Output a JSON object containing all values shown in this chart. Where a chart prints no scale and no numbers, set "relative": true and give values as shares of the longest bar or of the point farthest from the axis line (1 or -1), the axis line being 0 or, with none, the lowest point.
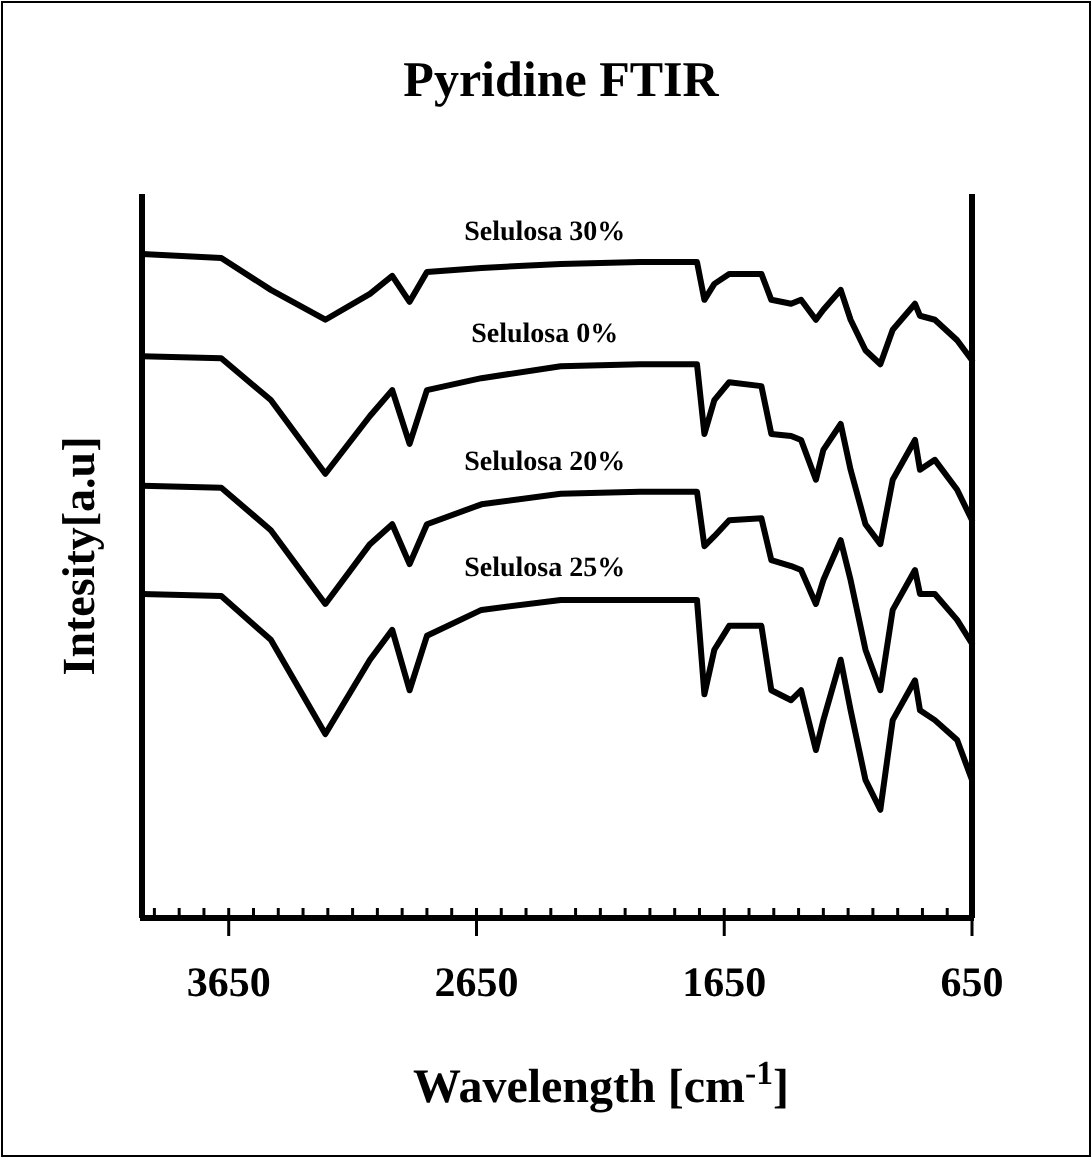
{
  "chart_data": {
    "type": "line",
    "title": "Pyridine FTIR",
    "xlabel": "Wavelength [cm$^{-1}$]",
    "ylabel": "Intesity[a.u]",
    "relative": true,
    "tick_labels": "x",
    "x": [
      4000,
      3680,
      3480,
      3260,
      3080,
      2990,
      2920,
      2850,
      2630,
      2310,
      1990,
      1760,
      1730,
      1690,
      1630,
      1500,
      1460,
      1380,
      1340,
      1280,
      1250,
      1180,
      1140,
      1080,
      1020,
      970,
      880,
      860,
      800,
      710,
      650
    ],
    "xlim": [
      4000,
      650
    ],
    "xticks": [
      {
        "value": 3950,
        "label": null
      },
      {
        "value": 3850,
        "label": null
      },
      {
        "value": 3750,
        "label": null
      },
      3650,
      {
        "value": 3550,
        "label": null
      },
      {
        "value": 3450,
        "label": null
      },
      {
        "value": 3350,
        "label": null
      },
      {
        "value": 3250,
        "label": null
      },
      {
        "value": 3150,
        "label": null
      },
      {
        "value": 3050,
        "label": null
      },
      {
        "value": 2950,
        "label": null
      },
      {
        "value": 2850,
        "label": null
      },
      {
        "value": 2750,
        "label": null
      },
      2650,
      {
        "value": 2550,
        "label": null
      },
      {
        "value": 2450,
        "label": null
      },
      {
        "value": 2350,
        "label": null
      },
      {
        "value": 2250,
        "label": null
      },
      {
        "value": 2150,
        "label": null
      },
      {
        "value": 2050,
        "label": null
      },
      {
        "value": 1950,
        "label": null
      },
      {
        "value": 1850,
        "label": null
      },
      {
        "value": 1750,
        "label": null
      },
      1650,
      {
        "value": 1550,
        "label": null
      },
      {
        "value": 1450,
        "label": null
      },
      {
        "value": 1350,
        "label": null
      },
      {
        "value": 1250,
        "label": null
      },
      {
        "value": 1150,
        "label": null
      },
      {
        "value": 1050,
        "label": null
      },
      {
        "value": 950,
        "label": null
      },
      {
        "value": 850,
        "label": null
      },
      {
        "value": 750,
        "label": null
      },
      650
    ],
    "series": [
      {
        "name": "Selulosa 30%",
        "color": "#000000",
        "values": [
          1.0,
          0.994,
          0.946,
          0.901,
          0.94,
          0.967,
          0.928,
          0.973,
          0.979,
          0.985,
          0.988,
          0.988,
          0.931,
          0.955,
          0.97,
          0.97,
          0.931,
          0.925,
          0.931,
          0.901,
          0.916,
          0.946,
          0.901,
          0.855,
          0.834,
          0.886,
          0.925,
          0.907,
          0.901,
          0.87,
          0.84
        ]
      },
      {
        "name": "Selulosa 0%",
        "color": "#000000",
        "values": [
          0.846,
          0.843,
          0.78,
          0.669,
          0.756,
          0.795,
          0.714,
          0.795,
          0.813,
          0.831,
          0.834,
          0.834,
          0.729,
          0.78,
          0.807,
          0.801,
          0.729,
          0.726,
          0.72,
          0.66,
          0.705,
          0.744,
          0.675,
          0.593,
          0.563,
          0.66,
          0.72,
          0.675,
          0.69,
          0.645,
          0.599
        ]
      },
      {
        "name": "Selulosa 20%",
        "color": "#000000",
        "values": [
          0.651,
          0.648,
          0.584,
          0.473,
          0.563,
          0.593,
          0.533,
          0.593,
          0.623,
          0.639,
          0.642,
          0.642,
          0.56,
          0.575,
          0.599,
          0.602,
          0.539,
          0.53,
          0.524,
          0.473,
          0.509,
          0.569,
          0.509,
          0.404,
          0.343,
          0.464,
          0.524,
          0.488,
          0.488,
          0.449,
          0.413
        ]
      },
      {
        "name": "Selulosa 25%",
        "color": "#000000",
        "values": [
          0.488,
          0.485,
          0.419,
          0.277,
          0.389,
          0.434,
          0.343,
          0.425,
          0.464,
          0.479,
          0.479,
          0.479,
          0.337,
          0.404,
          0.44,
          0.44,
          0.343,
          0.328,
          0.343,
          0.253,
          0.298,
          0.389,
          0.313,
          0.208,
          0.163,
          0.298,
          0.358,
          0.313,
          0.298,
          0.268,
          0.208
        ]
      }
    ]
  }
}
